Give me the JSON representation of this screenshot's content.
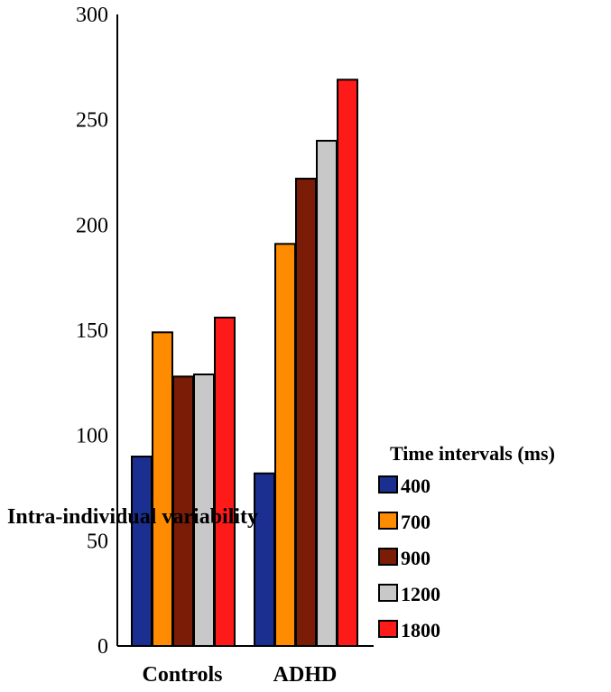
{
  "chart_data": {
    "type": "bar",
    "categories": [
      "Controls",
      "ADHD"
    ],
    "series": [
      {
        "name": "400",
        "color": "#1a2f8f",
        "values": [
          90,
          82
        ]
      },
      {
        "name": "700",
        "color": "#ff8c00",
        "values": [
          149,
          191
        ]
      },
      {
        "name": "900",
        "color": "#7b1c06",
        "values": [
          128,
          222
        ]
      },
      {
        "name": "1200",
        "color": "#c8c8c8",
        "values": [
          129,
          240
        ]
      },
      {
        "name": "1800",
        "color": "#ff1a1a",
        "values": [
          156,
          269
        ]
      }
    ],
    "ylabel": "Intra-individual variability",
    "ylim": [
      0,
      300
    ],
    "yticks": [
      0,
      50,
      100,
      150,
      200,
      250,
      300
    ],
    "legend_title": "Time intervals (ms)",
    "legend_position": "right",
    "grid": false
  }
}
